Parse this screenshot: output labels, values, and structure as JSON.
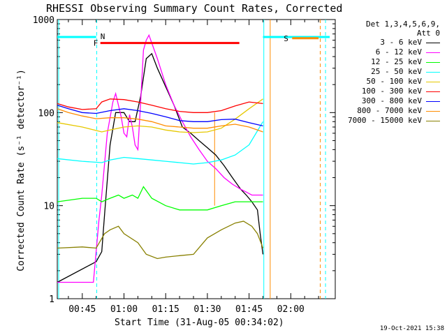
{
  "chart_data": {
    "type": "line",
    "title": "RHESSI Observing Summary Count Rates, Corrected",
    "xlabel": "Start Time (31-Aug-05 00:34:02)",
    "ylabel": "Corrected Count Rate (s⁻¹ detector⁻¹)",
    "yscale": "log",
    "ylim": [
      1,
      1000
    ],
    "xlim_minutes": [
      36,
      136
    ],
    "x_ticks": [
      {
        "minute": 45,
        "label": "00:45"
      },
      {
        "minute": 60,
        "label": "01:00"
      },
      {
        "minute": 75,
        "label": "01:15"
      },
      {
        "minute": 90,
        "label": "01:30"
      },
      {
        "minute": 105,
        "label": "01:45"
      },
      {
        "minute": 120,
        "label": "02:00"
      }
    ],
    "y_ticks": [
      {
        "value": 1,
        "label": "1"
      },
      {
        "value": 10,
        "label": "10"
      },
      {
        "value": 100,
        "label": "100"
      },
      {
        "value": 1000,
        "label": "1000"
      }
    ],
    "legend_header": [
      "Det 1,3,4,5,6,9,",
      "Att 0"
    ],
    "legend_placement": "right",
    "series": [
      {
        "name": "3 - 6 keV",
        "color": "#000000",
        "x": [
          36,
          50,
          52,
          53,
          55,
          57,
          60,
          62,
          64,
          66,
          68,
          70,
          72,
          75,
          78,
          81,
          84,
          87,
          90,
          93,
          96,
          99,
          102,
          104,
          106,
          108,
          109,
          110
        ],
        "y": [
          1.5,
          2.5,
          3.2,
          8,
          45,
          100,
          100,
          80,
          80,
          150,
          380,
          430,
          300,
          190,
          120,
          70,
          60,
          50,
          42,
          35,
          27,
          20,
          15,
          13,
          11,
          9,
          5,
          3
        ]
      },
      {
        "name": "6 - 12 keV",
        "color": "#ff00ff",
        "x": [
          36,
          49,
          51,
          52,
          54,
          56,
          57,
          58,
          59,
          60,
          61,
          62,
          63,
          64,
          65,
          66,
          67,
          68,
          69,
          70,
          72,
          75,
          78,
          81,
          84,
          87,
          90,
          93,
          96,
          99,
          102,
          104,
          106,
          108,
          110
        ],
        "y": [
          1.5,
          1.5,
          7,
          13,
          60,
          130,
          160,
          120,
          90,
          60,
          55,
          95,
          70,
          45,
          40,
          130,
          470,
          600,
          680,
          560,
          380,
          200,
          120,
          80,
          55,
          40,
          30,
          25,
          20,
          17,
          15,
          14,
          13,
          13,
          13
        ]
      },
      {
        "name": "12 - 25 keV",
        "color": "#00ff00",
        "x": [
          36,
          45,
          50,
          52,
          55,
          58,
          60,
          63,
          65,
          67,
          70,
          75,
          80,
          85,
          90,
          95,
          100,
          105,
          110
        ],
        "y": [
          11,
          12,
          12,
          11,
          12,
          13,
          12,
          13,
          12,
          16,
          12,
          10,
          9,
          9,
          9,
          10,
          11,
          11,
          11
        ]
      },
      {
        "name": "25 - 50 keV",
        "color": "#00ffff",
        "x": [
          36,
          45,
          52,
          55,
          60,
          65,
          70,
          75,
          80,
          85,
          90,
          95,
          100,
          105,
          110
        ],
        "y": [
          32,
          30,
          29,
          31,
          33,
          32,
          31,
          30,
          29,
          28,
          29,
          31,
          35,
          45,
          80
        ]
      },
      {
        "name": "50 - 100 keV",
        "color": "#e6c800",
        "x": [
          36,
          45,
          52,
          55,
          60,
          65,
          70,
          75,
          80,
          85,
          90,
          95,
          100,
          105,
          110
        ],
        "y": [
          78,
          70,
          62,
          65,
          70,
          72,
          70,
          65,
          62,
          61,
          62,
          68,
          85,
          110,
          140
        ]
      },
      {
        "name": "100 - 300 keV",
        "color": "#ff0000",
        "x": [
          36,
          40,
          45,
          50,
          52,
          55,
          60,
          65,
          70,
          75,
          80,
          85,
          90,
          95,
          100,
          105,
          110
        ],
        "y": [
          125,
          115,
          108,
          110,
          130,
          140,
          138,
          130,
          120,
          110,
          103,
          100,
          100,
          105,
          118,
          130,
          125
        ]
      },
      {
        "name": "300 - 800 keV",
        "color": "#0000ff",
        "x": [
          36,
          40,
          45,
          50,
          55,
          60,
          65,
          70,
          75,
          80,
          85,
          90,
          95,
          100,
          105,
          110
        ],
        "y": [
          120,
          110,
          100,
          98,
          105,
          110,
          105,
          98,
          90,
          82,
          80,
          80,
          84,
          85,
          78,
          72
        ]
      },
      {
        "name": "800 - 7000 keV",
        "color": "#ff8c00",
        "x": [
          36,
          40,
          45,
          50,
          55,
          60,
          65,
          70,
          75,
          80,
          85,
          90,
          95,
          100,
          105,
          110
        ],
        "y": [
          110,
          100,
          92,
          86,
          88,
          88,
          85,
          80,
          72,
          70,
          68,
          68,
          72,
          75,
          70,
          62
        ]
      },
      {
        "name": "7000 - 15000 keV",
        "color": "#888000",
        "x": [
          36,
          45,
          50,
          53,
          55,
          58,
          60,
          65,
          68,
          72,
          75,
          80,
          85,
          90,
          95,
          100,
          103,
          106,
          108,
          110
        ],
        "y": [
          3.5,
          3.6,
          3.5,
          5.0,
          5.5,
          6.0,
          5.0,
          4.0,
          3.0,
          2.7,
          2.8,
          2.9,
          3.0,
          4.5,
          5.5,
          6.5,
          6.8,
          6.0,
          5.0,
          3.5
        ]
      }
    ],
    "annotations": {
      "flare_bar": {
        "label": "F",
        "color": "#ff0000",
        "x_start": 51.5,
        "x_end": 101.5,
        "y": 560
      },
      "night_bar": {
        "label": "S",
        "color": "#ff8c00",
        "x_start": 120.5,
        "x_end": 130,
        "y": 630
      },
      "saa_bars": [
        {
          "label": "N",
          "color": "#00ffff",
          "x_start": 36,
          "x_end": 50,
          "y": 650
        },
        {
          "label": "",
          "color": "#00ffff",
          "x_start": 110,
          "x_end": 134,
          "y": 650
        }
      ],
      "vlines": [
        {
          "x": 36.5,
          "color": "#00ffff",
          "style": "solid"
        },
        {
          "x": 50.2,
          "color": "#00ffff",
          "style": "dashed"
        },
        {
          "x": 110.3,
          "color": "#00ffff",
          "style": "solid"
        },
        {
          "x": 132.5,
          "color": "#00ffff",
          "style": "dashed"
        },
        {
          "x": 112.6,
          "color": "#ff8c00",
          "style": "solid"
        },
        {
          "x": 130.6,
          "color": "#ff8c00",
          "style": "dashed"
        },
        {
          "x": 92.6,
          "color": "#ff8c00",
          "style": "solid",
          "y_top": 100,
          "y_bottom": 10
        }
      ]
    }
  },
  "timestamp": "19-Oct-2021 15:38",
  "colors": {
    "background": "#ffffff",
    "axes": "#000000"
  }
}
